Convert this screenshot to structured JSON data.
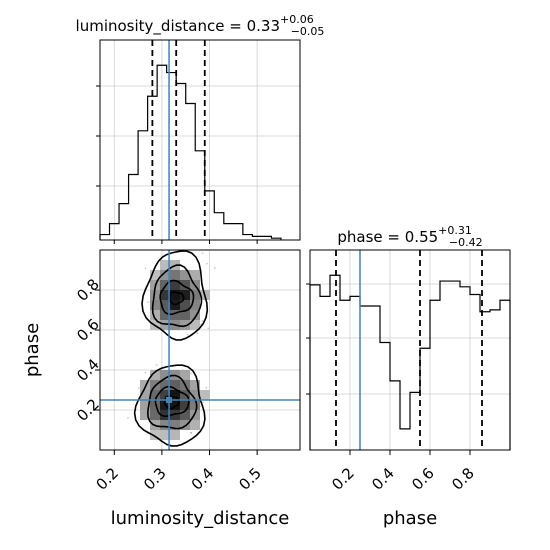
{
  "chart_data": {
    "type": "corner",
    "parameters": [
      "luminosity_distance",
      "phase"
    ],
    "truths": {
      "luminosity_distance": 0.315,
      "phase": 0.25
    },
    "color_truth": "#4682b4",
    "color_hist": "#000000",
    "panels": [
      {
        "id": "luminosity_distance_marginal",
        "type": "histogram",
        "title_text": "luminosity_distance = 0.33",
        "title_sup": "+0.06",
        "title_sub": "−0.05",
        "xlim": [
          0.17,
          0.59
        ],
        "ylim": [
          0,
          1
        ],
        "bin_edges": [
          0.17,
          0.19,
          0.21,
          0.23,
          0.25,
          0.27,
          0.29,
          0.31,
          0.33,
          0.35,
          0.37,
          0.39,
          0.41,
          0.43,
          0.45,
          0.47,
          0.49,
          0.51,
          0.53,
          0.55
        ],
        "counts": [
          0.03,
          0.09,
          0.2,
          0.36,
          0.6,
          0.79,
          0.96,
          0.92,
          0.86,
          0.75,
          0.49,
          0.27,
          0.15,
          0.09,
          0.09,
          0.03,
          0.02,
          0.02,
          0.01
        ],
        "quantiles": [
          0.28,
          0.33,
          0.39
        ]
      },
      {
        "id": "phase_marginal",
        "type": "histogram",
        "title_text": "phase = 0.55",
        "title_sup": "+0.31",
        "title_sub": "−0.42",
        "xlim": [
          0.0,
          1.0
        ],
        "ylim": [
          0,
          1
        ],
        "bin_edges": [
          0.0,
          0.05,
          0.1,
          0.15,
          0.2,
          0.25,
          0.3,
          0.35,
          0.4,
          0.45,
          0.5,
          0.55,
          0.6,
          0.65,
          0.7,
          0.75,
          0.8,
          0.85,
          0.9,
          0.95,
          1.0
        ],
        "counts": [
          0.86,
          0.8,
          0.91,
          0.78,
          0.8,
          0.75,
          0.75,
          0.56,
          0.36,
          0.11,
          0.3,
          0.53,
          0.78,
          0.88,
          0.88,
          0.85,
          0.81,
          0.72,
          0.73,
          0.78
        ],
        "quantiles": [
          0.13,
          0.55,
          0.86
        ],
        "xticks": [
          0.2,
          0.4,
          0.6,
          0.8
        ],
        "xticklabels": [
          "0.2",
          "0.4",
          "0.6",
          "0.8"
        ],
        "xlabel": "phase"
      },
      {
        "id": "joint_density",
        "type": "2d-histogram-contour",
        "xlim": [
          0.17,
          0.59
        ],
        "ylim": [
          0.0,
          1.0
        ],
        "xticks": [
          0.2,
          0.3,
          0.4,
          0.5
        ],
        "xticklabels": [
          "0.2",
          "0.3",
          "0.4",
          "0.5"
        ],
        "yticks": [
          0.2,
          0.4,
          0.6,
          0.8
        ],
        "yticklabels": [
          "0.2",
          "0.4",
          "0.6",
          "0.8"
        ],
        "xlabel": "luminosity_distance",
        "ylabel": "phase",
        "modes": [
          {
            "x": 0.33,
            "y": 0.76,
            "sx": 0.035,
            "sy": 0.1
          },
          {
            "x": 0.32,
            "y": 0.24,
            "sx": 0.04,
            "sy": 0.1
          }
        ],
        "contours": [
          {
            "level": 1,
            "x": 0.33,
            "y": 0.76,
            "rx": 0.015,
            "ry": 0.03
          },
          {
            "level": 2,
            "x": 0.33,
            "y": 0.76,
            "rx": 0.035,
            "ry": 0.08
          },
          {
            "level": 3,
            "x": 0.33,
            "y": 0.76,
            "rx": 0.05,
            "ry": 0.15
          },
          {
            "level": 4,
            "x": 0.33,
            "y": 0.77,
            "rx": 0.065,
            "ry": 0.22
          },
          {
            "level": 1,
            "x": 0.32,
            "y": 0.24,
            "rx": 0.015,
            "ry": 0.03
          },
          {
            "level": 2,
            "x": 0.32,
            "y": 0.24,
            "rx": 0.035,
            "ry": 0.07
          },
          {
            "level": 3,
            "x": 0.32,
            "y": 0.23,
            "rx": 0.05,
            "ry": 0.13
          },
          {
            "level": 4,
            "x": 0.32,
            "y": 0.22,
            "rx": 0.07,
            "ry": 0.2
          }
        ]
      }
    ]
  }
}
